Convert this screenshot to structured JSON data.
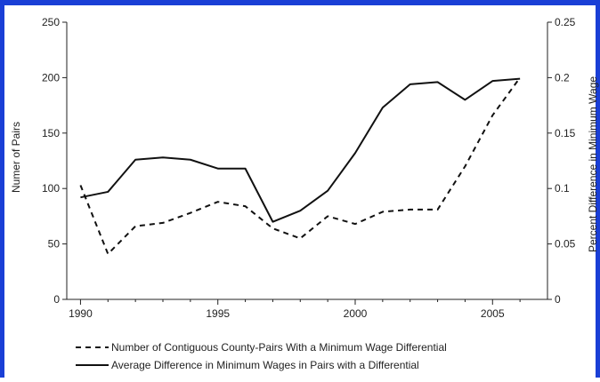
{
  "chart_data": {
    "type": "line",
    "title": "",
    "xlabel": "",
    "ylabel": "Numer of Pairs",
    "y2label": "Percent Difference in Minimum Wage",
    "xlim": [
      1989.5,
      2007
    ],
    "ylim": [
      0,
      250
    ],
    "y2lim": [
      0,
      0.25
    ],
    "x_ticks": [
      "1990",
      "1995",
      "2000",
      "2005"
    ],
    "y_ticks": [
      "0",
      "50",
      "100",
      "150",
      "200",
      "250"
    ],
    "y2_ticks": [
      "0",
      "0.05",
      "0.1",
      "0.15",
      "0.2",
      "0.25"
    ],
    "grid": false,
    "legend_position": "bottom",
    "series": [
      {
        "name": "Number of Contiguous County-Pairs With a Minimum Wage Differential",
        "axis": "left",
        "style": "dashed",
        "x": [
          1990,
          1991,
          1992,
          1993,
          1994,
          1995,
          1996,
          1997,
          1998,
          1999,
          2000,
          2001,
          2002,
          2003,
          2004,
          2005,
          2006
        ],
        "values": [
          103,
          41,
          66,
          69,
          78,
          88,
          84,
          64,
          55,
          75,
          68,
          79,
          81,
          81,
          120,
          166,
          200
        ]
      },
      {
        "name": "Average Difference in Minimum Wages in Pairs with a Differential",
        "axis": "right",
        "style": "solid",
        "x": [
          1990,
          1991,
          1992,
          1993,
          1994,
          1995,
          1996,
          1997,
          1998,
          1999,
          2000,
          2001,
          2002,
          2003,
          2004,
          2005,
          2006
        ],
        "values": [
          0.092,
          0.097,
          0.126,
          0.128,
          0.126,
          0.118,
          0.118,
          0.07,
          0.08,
          0.098,
          0.132,
          0.173,
          0.194,
          0.196,
          0.18,
          0.197,
          0.199
        ]
      }
    ]
  },
  "colors": {
    "frame_border": "#1a3fd6",
    "line": "#111111",
    "axis": "#222222"
  }
}
